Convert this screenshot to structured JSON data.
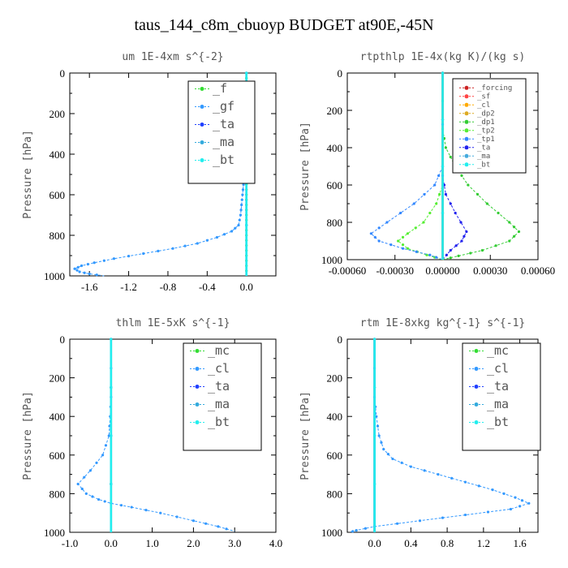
{
  "title": "taus_144_c8m_cbuoyp  BUDGET at90E,-45N",
  "chart_data": [
    {
      "type": "line",
      "title": "um  1E-4xm s^{-2}",
      "ylabel": "Pressure [hPa]",
      "xlim": [
        -1.8,
        0.3
      ],
      "ylim": [
        1000,
        0
      ],
      "xticks": [
        "-1.6",
        "-1.2",
        "-0.8",
        "-0.4",
        "0.0"
      ],
      "xtick_values": [
        -1.6,
        -1.2,
        -0.8,
        -0.4,
        0.0
      ],
      "yticks": [
        "0",
        "200",
        "400",
        "600",
        "800",
        "1000"
      ],
      "legend_position": "top-right",
      "series": [
        {
          "name": "_f",
          "color": "#33dd33",
          "points": [
            [
              0.0,
              0
            ],
            [
              0.0,
              100
            ],
            [
              0.0,
              200
            ],
            [
              0.0,
              300
            ],
            [
              0.0,
              400
            ],
            [
              0.0,
              500
            ],
            [
              0.0,
              600
            ],
            [
              0.0,
              700
            ],
            [
              0.0,
              800
            ],
            [
              0.0,
              900
            ],
            [
              0.0,
              1000
            ]
          ]
        },
        {
          "name": "_gf",
          "color": "#3399ff",
          "points": [
            [
              0.0,
              0
            ],
            [
              0.0,
              100
            ],
            [
              -0.01,
              150
            ],
            [
              -0.03,
              200
            ],
            [
              -0.02,
              250
            ],
            [
              -0.01,
              300
            ],
            [
              -0.02,
              350
            ],
            [
              -0.02,
              400
            ],
            [
              -0.02,
              450
            ],
            [
              -0.03,
              500
            ],
            [
              -0.03,
              550
            ],
            [
              -0.04,
              600
            ],
            [
              -0.05,
              650
            ],
            [
              -0.06,
              700
            ],
            [
              -0.08,
              750
            ],
            [
              -0.15,
              780
            ],
            [
              -0.3,
              810
            ],
            [
              -0.5,
              840
            ],
            [
              -0.75,
              865
            ],
            [
              -1.05,
              890
            ],
            [
              -1.35,
              915
            ],
            [
              -1.55,
              935
            ],
            [
              -1.68,
              950
            ],
            [
              -1.75,
              965
            ],
            [
              -1.7,
              980
            ],
            [
              -1.6,
              990
            ],
            [
              -1.45,
              1000
            ]
          ]
        },
        {
          "name": "_ta",
          "color": "#1f3fff",
          "points": [
            [
              0.0,
              0
            ],
            [
              0.0,
              1000
            ]
          ]
        },
        {
          "name": "_ma",
          "color": "#33aadd",
          "points": [
            [
              0.0,
              0
            ],
            [
              0.0,
              1000
            ]
          ]
        },
        {
          "name": "_bt",
          "color": "#22eeee",
          "points": [
            [
              0.0,
              0
            ],
            [
              0.0,
              1000
            ]
          ]
        }
      ]
    },
    {
      "type": "line",
      "title": "rtpthlp  1E-4x(kg K)/(kg s)",
      "ylabel": "Pressure [hPa]",
      "xlim": [
        -0.0006,
        0.0006
      ],
      "ylim": [
        1000,
        0
      ],
      "xticks": [
        "-0.00060",
        "-0.00030",
        "0.00000",
        "0.00030",
        "0.00060"
      ],
      "xtick_values": [
        -0.0006,
        -0.0003,
        0.0,
        0.0003,
        0.0006
      ],
      "yticks": [
        "0",
        "200",
        "400",
        "600",
        "800",
        "1000"
      ],
      "legend_position": "top-right",
      "series": [
        {
          "name": "_forcing",
          "color": "#cc2222",
          "points": [
            [
              0.0,
              0
            ],
            [
              0.0,
              1000
            ]
          ]
        },
        {
          "name": "_sf",
          "color": "#ff4444",
          "points": [
            [
              0.0,
              0
            ],
            [
              0.0,
              1000
            ]
          ]
        },
        {
          "name": "_cl",
          "color": "#ffaa00",
          "points": [
            [
              0.0,
              0
            ],
            [
              0.0,
              1000
            ]
          ]
        },
        {
          "name": "_dp2",
          "color": "#ddaa22",
          "points": [
            [
              0.0,
              0
            ],
            [
              0.0,
              1000
            ]
          ]
        },
        {
          "name": "_dp1",
          "color": "#33cc33",
          "points": [
            [
              0.0,
              0
            ],
            [
              0.0,
              300
            ],
            [
              2e-05,
              400
            ],
            [
              8e-05,
              500
            ],
            [
              0.00016,
              600
            ],
            [
              0.00028,
              700
            ],
            [
              0.00042,
              800
            ],
            [
              0.00048,
              850
            ],
            [
              0.00042,
              900
            ],
            [
              0.00025,
              950
            ],
            [
              0.0001,
              980
            ],
            [
              0.0,
              1000
            ]
          ]
        },
        {
          "name": "_tp2",
          "color": "#55ee33",
          "points": [
            [
              0.0,
              0
            ],
            [
              0.0,
              600
            ],
            [
              -4e-05,
              700
            ],
            [
              -0.00012,
              800
            ],
            [
              -0.00022,
              860
            ],
            [
              -0.00028,
              900
            ],
            [
              -0.00022,
              940
            ],
            [
              -0.0001,
              975
            ],
            [
              0.0,
              1000
            ]
          ]
        },
        {
          "name": "_tp1",
          "color": "#3388ff",
          "points": [
            [
              0.0,
              0
            ],
            [
              0.0,
              500
            ],
            [
              -5e-05,
              600
            ],
            [
              -0.00018,
              700
            ],
            [
              -0.00035,
              800
            ],
            [
              -0.00045,
              860
            ],
            [
              -0.0004,
              900
            ],
            [
              -0.00025,
              940
            ],
            [
              -8e-05,
              975
            ],
            [
              0.0,
              1000
            ]
          ]
        },
        {
          "name": "_ta",
          "color": "#2222ee",
          "points": [
            [
              0.0,
              0
            ],
            [
              0.0,
              550
            ],
            [
              2e-05,
              650
            ],
            [
              8e-05,
              750
            ],
            [
              0.00015,
              850
            ],
            [
              0.00012,
              900
            ],
            [
              5e-05,
              950
            ],
            [
              0.0,
              1000
            ]
          ]
        },
        {
          "name": "_ma",
          "color": "#44aadd",
          "points": [
            [
              0.0,
              0
            ],
            [
              0.0,
              1000
            ]
          ]
        },
        {
          "name": "_bt",
          "color": "#22eeee",
          "points": [
            [
              0.0,
              0
            ],
            [
              0.0,
              1000
            ]
          ]
        }
      ]
    },
    {
      "type": "line",
      "title": "thlm  1E-5xK s^{-1}",
      "ylabel": "Pressure [hPa]",
      "xlim": [
        -1.0,
        4.0
      ],
      "ylim": [
        1000,
        0
      ],
      "xticks": [
        "-1.0",
        "0.0",
        "1.0",
        "2.0",
        "3.0",
        "4.0"
      ],
      "xtick_values": [
        -1.0,
        0.0,
        1.0,
        2.0,
        3.0,
        4.0
      ],
      "yticks": [
        "0",
        "200",
        "400",
        "600",
        "800",
        "1000"
      ],
      "legend_position": "top-right",
      "series": [
        {
          "name": "_mc",
          "color": "#33dd33",
          "points": [
            [
              0.0,
              0
            ],
            [
              0.0,
              1000
            ]
          ]
        },
        {
          "name": "_cl",
          "color": "#3399ff",
          "points": [
            [
              0.0,
              0
            ],
            [
              0.0,
              300
            ],
            [
              -0.02,
              400
            ],
            [
              -0.05,
              500
            ],
            [
              -0.2,
              600
            ],
            [
              -0.5,
              680
            ],
            [
              -0.8,
              750
            ],
            [
              -0.6,
              800
            ],
            [
              -0.3,
              830
            ],
            [
              0.0,
              850
            ],
            [
              0.5,
              870
            ],
            [
              1.2,
              900
            ],
            [
              2.0,
              940
            ],
            [
              2.6,
              970
            ],
            [
              3.0,
              995
            ]
          ]
        },
        {
          "name": "_ta",
          "color": "#1f3fff",
          "points": [
            [
              0.0,
              0
            ],
            [
              0.0,
              1000
            ]
          ]
        },
        {
          "name": "_ma",
          "color": "#33aadd",
          "points": [
            [
              0.0,
              0
            ],
            [
              0.0,
              1000
            ]
          ]
        },
        {
          "name": "_bt",
          "color": "#22eeee",
          "points": [
            [
              0.0,
              0
            ],
            [
              0.0,
              1000
            ]
          ]
        }
      ]
    },
    {
      "type": "line",
      "title": "rtm  1E-8xkg kg^{-1} s^{-1}",
      "ylabel": "Pressure [hPa]",
      "xlim": [
        -0.3,
        1.8
      ],
      "ylim": [
        1000,
        0
      ],
      "xticks": [
        "0.0",
        "0.4",
        "0.8",
        "1.2",
        "1.6"
      ],
      "xtick_values": [
        0.0,
        0.4,
        0.8,
        1.2,
        1.6
      ],
      "yticks": [
        "0",
        "200",
        "400",
        "600",
        "800",
        "1000"
      ],
      "legend_position": "top-right",
      "series": [
        {
          "name": "_mc",
          "color": "#33dd33",
          "points": [
            [
              0.0,
              0
            ],
            [
              0.0,
              1000
            ]
          ]
        },
        {
          "name": "_cl",
          "color": "#3399ff",
          "points": [
            [
              0.0,
              0
            ],
            [
              0.0,
              300
            ],
            [
              0.02,
              400
            ],
            [
              0.05,
              500
            ],
            [
              0.1,
              570
            ],
            [
              0.2,
              620
            ],
            [
              0.4,
              660
            ],
            [
              0.7,
              700
            ],
            [
              1.0,
              740
            ],
            [
              1.3,
              780
            ],
            [
              1.55,
              820
            ],
            [
              1.7,
              850
            ],
            [
              1.5,
              880
            ],
            [
              1.0,
              910
            ],
            [
              0.5,
              940
            ],
            [
              0.0,
              970
            ],
            [
              -0.2,
              990
            ],
            [
              -0.28,
              1000
            ]
          ]
        },
        {
          "name": "_ta",
          "color": "#1f3fff",
          "points": [
            [
              0.0,
              0
            ],
            [
              0.0,
              1000
            ]
          ]
        },
        {
          "name": "_ma",
          "color": "#33aadd",
          "points": [
            [
              0.0,
              0
            ],
            [
              0.0,
              1000
            ]
          ]
        },
        {
          "name": "_bt",
          "color": "#22eeee",
          "points": [
            [
              0.0,
              0
            ],
            [
              0.0,
              1000
            ]
          ]
        }
      ]
    }
  ]
}
